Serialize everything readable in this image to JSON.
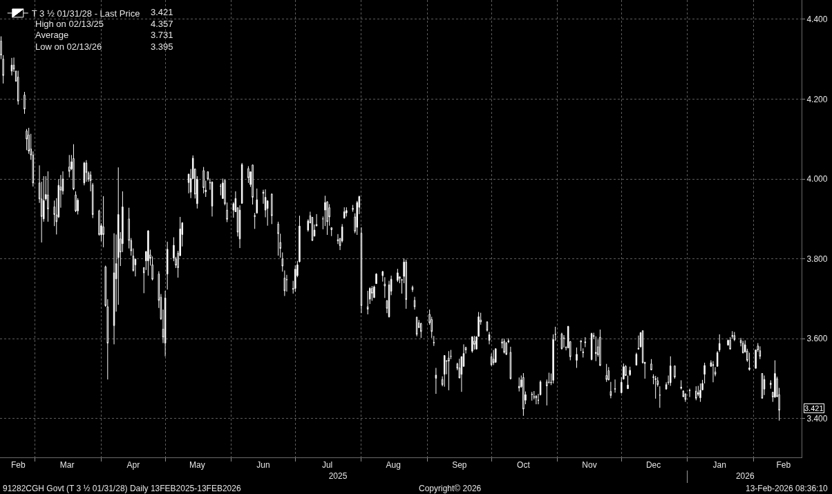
{
  "chart_data": {
    "type": "candlestick",
    "legend": "top left",
    "grid": true,
    "xlim": [
      "2025-02-12T12:00",
      "2026-02-23T12:00"
    ],
    "xticks": [
      {
        "value": "2025-02-21",
        "label": "Feb"
      },
      {
        "value": "2025-03-01",
        "label": null
      },
      {
        "value": "2025-03-16",
        "label": "Mar"
      },
      {
        "value": "2025-04-01",
        "label": null
      },
      {
        "value": "2025-04-16",
        "label": "Apr"
      },
      {
        "value": "2025-05-01",
        "label": null
      },
      {
        "value": "2025-05-16",
        "label": "May"
      },
      {
        "value": "2025-06-01",
        "label": null
      },
      {
        "value": "2025-06-16",
        "label": "Jun"
      },
      {
        "value": "2025-07-01",
        "label": null
      },
      {
        "value": "2025-07-16",
        "label": "Jul"
      },
      {
        "value": "2025-08-01",
        "label": null
      },
      {
        "value": "2025-08-16",
        "label": "Aug"
      },
      {
        "value": "2025-09-01",
        "label": null
      },
      {
        "value": "2025-09-16",
        "label": "Sep"
      },
      {
        "value": "2025-10-01",
        "label": null
      },
      {
        "value": "2025-10-16",
        "label": "Oct"
      },
      {
        "value": "2025-11-01",
        "label": null
      },
      {
        "value": "2025-11-16",
        "label": "Nov"
      },
      {
        "value": "2025-12-01",
        "label": null
      },
      {
        "value": "2025-12-16",
        "label": "Dec"
      },
      {
        "value": "2026-01-01",
        "label": null
      },
      {
        "value": "2026-01-16",
        "label": "Jan"
      },
      {
        "value": "2026-02-01",
        "label": null
      },
      {
        "value": "2026-02-15",
        "label": "Feb"
      }
    ],
    "x2lim": [
      "2025-02-12T12:00",
      "2026-02-23T12:00"
    ],
    "x2ticks": [
      {
        "value": "2025-07-21",
        "label": "2025"
      },
      {
        "value": "2026-01-01",
        "label": null
      },
      {
        "value": "2026-01-28",
        "label": "2026"
      }
    ],
    "ylim": [
      3.303,
      4.448
    ],
    "yticks": [
      {
        "value": 3.4,
        "label": "3.400"
      },
      {
        "value": 3.6,
        "label": "3.600"
      },
      {
        "value": 3.8,
        "label": "3.800"
      },
      {
        "value": 4.0,
        "label": "4.000"
      },
      {
        "value": 4.2,
        "label": "4.200"
      },
      {
        "value": 4.4,
        "label": "4.400"
      }
    ],
    "annotations": [
      "3.421",
      "High on 02/13/25 4.357",
      "Average 3.731",
      "Low on 02/13/26 3.395",
      "91282CGH Govt (T 3 ½ 01/31/28) Daily 13FEB2025-13FEB2026",
      "Copyright© 2026",
      "13-Feb-2026 08:36:10"
    ],
    "x": [
      "2025-02-13",
      "2025-02-14",
      "2025-02-18",
      "2025-02-19",
      "2025-02-20",
      "2025-02-21",
      "2025-02-24",
      "2025-02-25",
      "2025-02-26",
      "2025-02-27",
      "2025-02-28",
      "2025-03-03",
      "2025-03-04",
      "2025-03-05",
      "2025-03-06",
      "2025-03-07",
      "2025-03-10",
      "2025-03-11",
      "2025-03-12",
      "2025-03-13",
      "2025-03-14",
      "2025-03-17",
      "2025-03-18",
      "2025-03-19",
      "2025-03-20",
      "2025-03-21",
      "2025-03-24",
      "2025-03-25",
      "2025-03-26",
      "2025-03-27",
      "2025-03-28",
      "2025-03-31",
      "2025-04-01",
      "2025-04-02",
      "2025-04-03",
      "2025-04-04",
      "2025-04-07",
      "2025-04-08",
      "2025-04-09",
      "2025-04-10",
      "2025-04-11",
      "2025-04-14",
      "2025-04-15",
      "2025-04-16",
      "2025-04-17",
      "2025-04-21",
      "2025-04-22",
      "2025-04-23",
      "2025-04-24",
      "2025-04-25",
      "2025-04-28",
      "2025-04-29",
      "2025-04-30",
      "2025-05-01",
      "2025-05-02",
      "2025-05-05",
      "2025-05-06",
      "2025-05-07",
      "2025-05-08",
      "2025-05-09",
      "2025-05-12",
      "2025-05-13",
      "2025-05-14",
      "2025-05-15",
      "2025-05-16",
      "2025-05-19",
      "2025-05-20",
      "2025-05-21",
      "2025-05-22",
      "2025-05-23",
      "2025-05-27",
      "2025-05-28",
      "2025-05-29",
      "2025-05-30",
      "2025-06-02",
      "2025-06-03",
      "2025-06-04",
      "2025-06-05",
      "2025-06-06",
      "2025-06-09",
      "2025-06-10",
      "2025-06-11",
      "2025-06-12",
      "2025-06-13",
      "2025-06-16",
      "2025-06-17",
      "2025-06-18",
      "2025-06-20",
      "2025-06-23",
      "2025-06-24",
      "2025-06-25",
      "2025-06-26",
      "2025-06-27",
      "2025-06-30",
      "2025-07-01",
      "2025-07-02",
      "2025-07-03",
      "2025-07-07",
      "2025-07-08",
      "2025-07-09",
      "2025-07-10",
      "2025-07-11",
      "2025-07-14",
      "2025-07-15",
      "2025-07-16",
      "2025-07-17",
      "2025-07-18",
      "2025-07-21",
      "2025-07-22",
      "2025-07-23",
      "2025-07-24",
      "2025-07-25",
      "2025-07-28",
      "2025-07-29",
      "2025-07-30",
      "2025-07-31",
      "2025-08-01",
      "2025-08-04",
      "2025-08-05",
      "2025-08-06",
      "2025-08-07",
      "2025-08-08",
      "2025-08-11",
      "2025-08-12",
      "2025-08-13",
      "2025-08-14",
      "2025-08-15",
      "2025-08-18",
      "2025-08-19",
      "2025-08-20",
      "2025-08-21",
      "2025-08-22",
      "2025-08-25",
      "2025-08-26",
      "2025-08-27",
      "2025-08-28",
      "2025-08-29",
      "2025-09-02",
      "2025-09-03",
      "2025-09-04",
      "2025-09-05",
      "2025-09-08",
      "2025-09-09",
      "2025-09-10",
      "2025-09-11",
      "2025-09-12",
      "2025-09-15",
      "2025-09-16",
      "2025-09-17",
      "2025-09-18",
      "2025-09-19",
      "2025-09-22",
      "2025-09-23",
      "2025-09-24",
      "2025-09-25",
      "2025-09-26",
      "2025-09-29",
      "2025-09-30",
      "2025-10-01",
      "2025-10-02",
      "2025-10-03",
      "2025-10-06",
      "2025-10-07",
      "2025-10-08",
      "2025-10-09",
      "2025-10-10",
      "2025-10-14",
      "2025-10-15",
      "2025-10-16",
      "2025-10-17",
      "2025-10-20",
      "2025-10-21",
      "2025-10-22",
      "2025-10-23",
      "2025-10-24",
      "2025-10-27",
      "2025-10-28",
      "2025-10-29",
      "2025-10-30",
      "2025-10-31",
      "2025-11-03",
      "2025-11-04",
      "2025-11-05",
      "2025-11-06",
      "2025-11-07",
      "2025-11-10",
      "2025-11-12",
      "2025-11-13",
      "2025-11-14",
      "2025-11-17",
      "2025-11-18",
      "2025-11-19",
      "2025-11-20",
      "2025-11-21",
      "2025-11-24",
      "2025-11-25",
      "2025-11-26",
      "2025-11-28",
      "2025-12-01",
      "2025-12-02",
      "2025-12-03",
      "2025-12-04",
      "2025-12-05",
      "2025-12-08",
      "2025-12-09",
      "2025-12-10",
      "2025-12-11",
      "2025-12-12",
      "2025-12-15",
      "2025-12-16",
      "2025-12-17",
      "2025-12-18",
      "2025-12-19",
      "2025-12-22",
      "2025-12-23",
      "2025-12-24",
      "2025-12-26",
      "2025-12-29",
      "2025-12-30",
      "2025-12-31",
      "2026-01-02",
      "2026-01-05",
      "2026-01-06",
      "2026-01-07",
      "2026-01-08",
      "2026-01-09",
      "2026-01-12",
      "2026-01-13",
      "2026-01-14",
      "2026-01-15",
      "2026-01-16",
      "2026-01-20",
      "2026-01-21",
      "2026-01-22",
      "2026-01-23",
      "2026-01-26",
      "2026-01-27",
      "2026-01-28",
      "2026-01-29",
      "2026-01-30",
      "2026-02-02",
      "2026-02-03",
      "2026-02-04",
      "2026-02-05",
      "2026-02-06",
      "2026-02-09",
      "2026-02-10",
      "2026-02-11",
      "2026-02-12",
      "2026-02-13"
    ],
    "series": [
      {
        "name": "T 3 ½ 01/31/28 - Last Price",
        "color": "#ffffff",
        "ohlc": [
          [
            4.345,
            4.357,
            4.3,
            4.31
          ],
          [
            4.3,
            4.31,
            4.239,
            4.259
          ],
          [
            4.27,
            4.303,
            4.259,
            4.285
          ],
          [
            4.285,
            4.304,
            4.268,
            4.275
          ],
          [
            4.27,
            4.271,
            4.243,
            4.245
          ],
          [
            4.255,
            4.271,
            4.186,
            4.195
          ],
          [
            4.21,
            4.218,
            4.163,
            4.175
          ],
          [
            4.12,
            4.125,
            4.072,
            4.1
          ],
          [
            4.11,
            4.128,
            4.063,
            4.07
          ],
          [
            4.075,
            4.113,
            4.048,
            4.06
          ],
          [
            4.06,
            4.069,
            3.981,
            3.99
          ],
          [
            3.99,
            4.034,
            3.94,
            3.95
          ],
          [
            3.95,
            3.993,
            3.841,
            3.906
          ],
          [
            3.9,
            4.007,
            3.893,
            3.946
          ],
          [
            3.95,
            4.007,
            3.946,
            3.961
          ],
          [
            3.96,
            4.019,
            3.893,
            3.925
          ],
          [
            3.93,
            3.946,
            3.882,
            3.911
          ],
          [
            3.91,
            3.952,
            3.861,
            3.893
          ],
          [
            3.905,
            3.999,
            3.902,
            3.984
          ],
          [
            3.98,
            4.01,
            3.928,
            3.972
          ],
          [
            3.97,
            4.019,
            3.961,
            4.0
          ],
          [
            4.03,
            4.06,
            4.004,
            4.019
          ],
          [
            4.025,
            4.06,
            4.022,
            4.043
          ],
          [
            4.051,
            4.087,
            3.972,
            3.975
          ],
          [
            3.96,
            3.969,
            3.917,
            3.92
          ],
          [
            3.92,
            3.952,
            3.911,
            3.947
          ],
          [
            3.99,
            4.043,
            3.984,
            4.04
          ],
          [
            4.04,
            4.047,
            3.993,
            4.016
          ],
          [
            4.015,
            4.019,
            3.993,
            4.0
          ],
          [
            4.01,
            4.019,
            3.969,
            3.996
          ],
          [
            3.985,
            3.99,
            3.902,
            3.911
          ],
          [
            3.92,
            3.923,
            3.858,
            3.861
          ],
          [
            3.86,
            3.889,
            3.844,
            3.883
          ],
          [
            3.88,
            3.957,
            3.829,
            3.861
          ],
          [
            3.78,
            3.783,
            3.68,
            3.683
          ],
          [
            3.68,
            3.699,
            3.498,
            3.589
          ],
          [
            3.633,
            3.864,
            3.586,
            3.765
          ],
          [
            3.75,
            3.861,
            3.668,
            3.788
          ],
          [
            3.803,
            4.029,
            3.685,
            3.911
          ],
          [
            3.85,
            3.867,
            3.782,
            3.817
          ],
          [
            3.838,
            3.969,
            3.817,
            3.93
          ],
          [
            3.9,
            3.928,
            3.826,
            3.846
          ],
          [
            3.846,
            3.852,
            3.808,
            3.82
          ],
          [
            3.807,
            3.826,
            3.768,
            3.771
          ],
          [
            3.785,
            3.801,
            3.756,
            3.799
          ],
          [
            3.778,
            3.779,
            3.714,
            3.765
          ],
          [
            3.795,
            3.82,
            3.772,
            3.818
          ],
          [
            3.795,
            3.872,
            3.758,
            3.87
          ],
          [
            3.81,
            3.823,
            3.783,
            3.802
          ],
          [
            3.785,
            3.806,
            3.746,
            3.749
          ],
          [
            3.762,
            3.769,
            3.677,
            3.696
          ],
          [
            3.704,
            3.712,
            3.647,
            3.65
          ],
          [
            3.624,
            3.673,
            3.589,
            3.604
          ],
          [
            3.589,
            3.72,
            3.556,
            3.702
          ],
          [
            3.762,
            3.843,
            3.723,
            3.824
          ],
          [
            3.802,
            3.854,
            3.794,
            3.834
          ],
          [
            3.8,
            3.805,
            3.777,
            3.784
          ],
          [
            3.814,
            3.82,
            3.753,
            3.778
          ],
          [
            3.808,
            3.905,
            3.807,
            3.875
          ],
          [
            3.861,
            3.892,
            3.831,
            3.89
          ],
          [
            3.991,
            4.013,
            3.964,
            4.012
          ],
          [
            3.967,
            4.025,
            3.952,
            4.001
          ],
          [
            4.001,
            4.059,
            4.0,
            4.052
          ],
          [
            4.025,
            4.026,
            3.951,
            3.962
          ],
          [
            3.938,
            4.007,
            3.926,
            3.999
          ],
          [
            4.021,
            4.03,
            3.964,
            3.978
          ],
          [
            3.968,
            3.996,
            3.955,
            3.972
          ],
          [
            4.018,
            4.019,
            3.996,
            4.0
          ],
          [
            3.99,
            4.001,
            3.973,
            3.991
          ],
          [
            3.932,
            3.994,
            3.906,
            3.992
          ],
          [
            3.982,
            3.988,
            3.959,
            3.982
          ],
          [
            3.951,
            4.001,
            3.95,
            3.99
          ],
          [
            3.996,
            3.999,
            3.934,
            3.938
          ],
          [
            3.922,
            3.941,
            3.892,
            3.899
          ],
          [
            3.922,
            3.942,
            3.903,
            3.938
          ],
          [
            3.918,
            3.969,
            3.917,
            3.951
          ],
          [
            3.928,
            3.929,
            3.856,
            3.867
          ],
          [
            3.85,
            3.934,
            3.827,
            3.922
          ],
          [
            3.939,
            4.04,
            3.938,
            4.036
          ],
          [
            4.026,
            4.032,
            3.99,
            4.003
          ],
          [
            3.986,
            4.019,
            3.98,
            4.018
          ],
          [
            4.035,
            4.036,
            3.936,
            3.954
          ],
          [
            3.906,
            3.915,
            3.875,
            3.908
          ],
          [
            3.915,
            3.976,
            3.913,
            3.948
          ],
          [
            3.964,
            3.973,
            3.938,
            3.967
          ],
          [
            3.922,
            3.974,
            3.904,
            3.954
          ],
          [
            3.926,
            3.947,
            3.883,
            3.945
          ],
          [
            3.962,
            3.964,
            3.887,
            3.908
          ],
          [
            3.887,
            3.893,
            3.808,
            3.863
          ],
          [
            3.841,
            3.863,
            3.803,
            3.826
          ],
          [
            3.8,
            3.816,
            3.768,
            3.782
          ],
          [
            3.752,
            3.771,
            3.707,
            3.72
          ],
          [
            3.748,
            3.76,
            3.718,
            3.748
          ],
          [
            3.726,
            3.745,
            3.713,
            3.724
          ],
          [
            3.726,
            3.784,
            3.718,
            3.774
          ],
          [
            3.758,
            3.795,
            3.754,
            3.785
          ],
          [
            3.793,
            3.908,
            3.791,
            3.882
          ],
          [
            3.872,
            3.899,
            3.868,
            3.895
          ],
          [
            3.908,
            3.918,
            3.889,
            3.89
          ],
          [
            3.904,
            3.905,
            3.845,
            3.846
          ],
          [
            3.857,
            3.886,
            3.856,
            3.872
          ],
          [
            3.883,
            3.912,
            3.881,
            3.886
          ],
          [
            3.9,
            3.906,
            3.874,
            3.9
          ],
          [
            3.922,
            3.958,
            3.882,
            3.941
          ],
          [
            3.943,
            3.944,
            3.86,
            3.893
          ],
          [
            3.928,
            3.937,
            3.883,
            3.905
          ],
          [
            3.878,
            3.879,
            3.857,
            3.873
          ],
          [
            3.848,
            3.862,
            3.837,
            3.845
          ],
          [
            3.851,
            3.852,
            3.822,
            3.833
          ],
          [
            3.845,
            3.887,
            3.841,
            3.88
          ],
          [
            3.902,
            3.929,
            3.901,
            3.918
          ],
          [
            3.915,
            3.929,
            3.906,
            3.921
          ],
          [
            3.924,
            3.935,
            3.918,
            3.926
          ],
          [
            3.905,
            3.914,
            3.864,
            3.869
          ],
          [
            3.879,
            3.945,
            3.86,
            3.941
          ],
          [
            3.929,
            3.958,
            3.912,
            3.956
          ],
          [
            3.864,
            3.879,
            3.664,
            3.683
          ],
          [
            3.68,
            3.72,
            3.661,
            3.674
          ],
          [
            3.699,
            3.729,
            3.687,
            3.726
          ],
          [
            3.726,
            3.732,
            3.695,
            3.714
          ],
          [
            3.703,
            3.733,
            3.702,
            3.73
          ],
          [
            3.738,
            3.764,
            3.737,
            3.762
          ],
          [
            3.758,
            3.77,
            3.743,
            3.768
          ],
          [
            3.737,
            3.754,
            3.702,
            3.732
          ],
          [
            3.695,
            3.697,
            3.664,
            3.676
          ],
          [
            3.655,
            3.745,
            3.653,
            3.735
          ],
          [
            3.719,
            3.758,
            3.709,
            3.749
          ],
          [
            3.746,
            3.775,
            3.742,
            3.765
          ],
          [
            3.755,
            3.756,
            3.739,
            3.751
          ],
          [
            3.748,
            3.75,
            3.713,
            3.747
          ],
          [
            3.756,
            3.801,
            3.739,
            3.792
          ],
          [
            3.792,
            3.798,
            3.675,
            3.698
          ],
          [
            3.729,
            3.733,
            3.717,
            3.723
          ],
          [
            3.696,
            3.705,
            3.673,
            3.68
          ],
          [
            3.654,
            3.655,
            3.606,
            3.611
          ],
          [
            3.64,
            3.647,
            3.627,
            3.628
          ],
          [
            3.638,
            3.64,
            3.602,
            3.618
          ],
          [
            3.661,
            3.673,
            3.635,
            3.64
          ],
          [
            3.648,
            3.655,
            3.602,
            3.618
          ],
          [
            3.591,
            3.607,
            3.582,
            3.59
          ],
          [
            3.501,
            3.527,
            3.462,
            3.509
          ],
          [
            3.498,
            3.506,
            3.481,
            3.485
          ],
          [
            3.511,
            3.559,
            3.48,
            3.558
          ],
          [
            3.545,
            3.546,
            3.511,
            3.544
          ],
          [
            3.552,
            3.569,
            3.471,
            3.544
          ],
          [
            3.556,
            3.572,
            3.549,
            3.556
          ],
          [
            3.537,
            3.54,
            3.521,
            3.526
          ],
          [
            3.527,
            3.55,
            3.501,
            3.502
          ],
          [
            3.511,
            3.556,
            3.467,
            3.555
          ],
          [
            3.531,
            3.586,
            3.53,
            3.563
          ],
          [
            3.578,
            3.58,
            3.563,
            3.572
          ],
          [
            3.569,
            3.606,
            3.565,
            3.605
          ],
          [
            3.594,
            3.607,
            3.573,
            3.586
          ],
          [
            3.574,
            3.606,
            3.573,
            3.605
          ],
          [
            3.606,
            3.667,
            3.605,
            3.655
          ],
          [
            3.647,
            3.665,
            3.635,
            3.642
          ],
          [
            3.642,
            3.644,
            3.618,
            3.621
          ],
          [
            3.596,
            3.617,
            3.586,
            3.61
          ],
          [
            3.555,
            3.563,
            3.532,
            3.535
          ],
          [
            3.549,
            3.572,
            3.534,
            3.54
          ],
          [
            3.541,
            3.576,
            3.54,
            3.575
          ],
          [
            3.592,
            3.6,
            3.576,
            3.589
          ],
          [
            3.594,
            3.6,
            3.563,
            3.566
          ],
          [
            3.589,
            3.592,
            3.559,
            3.561
          ],
          [
            3.592,
            3.601,
            3.589,
            3.595
          ],
          [
            3.566,
            3.58,
            3.498,
            3.5
          ],
          [
            3.477,
            3.503,
            3.468,
            3.481
          ],
          [
            3.48,
            3.508,
            3.477,
            3.497
          ],
          [
            3.503,
            3.514,
            3.407,
            3.424
          ],
          [
            3.446,
            3.468,
            3.436,
            3.46
          ],
          [
            3.46,
            3.467,
            3.445,
            3.461
          ],
          [
            3.455,
            3.469,
            3.448,
            3.454
          ],
          [
            3.456,
            3.459,
            3.436,
            3.452
          ],
          [
            3.446,
            3.462,
            3.436,
            3.446
          ],
          [
            3.46,
            3.496,
            3.458,
            3.492
          ],
          [
            3.492,
            3.498,
            3.433,
            3.482
          ],
          [
            3.491,
            3.515,
            3.488,
            3.491
          ],
          [
            3.491,
            3.513,
            3.484,
            3.49
          ],
          [
            3.496,
            3.611,
            3.488,
            3.598
          ],
          [
            3.611,
            3.63,
            3.595,
            3.611
          ],
          [
            3.612,
            3.615,
            3.573,
            3.575
          ],
          [
            3.602,
            3.609,
            3.578,
            3.601
          ],
          [
            3.578,
            3.581,
            3.571,
            3.578
          ],
          [
            3.577,
            3.632,
            3.576,
            3.631
          ],
          [
            3.593,
            3.594,
            3.546,
            3.555
          ],
          [
            3.546,
            3.578,
            3.527,
            3.561
          ],
          [
            3.595,
            3.596,
            3.569,
            3.592
          ],
          [
            3.565,
            3.576,
            3.553,
            3.567
          ],
          [
            3.59,
            3.604,
            3.579,
            3.592
          ],
          [
            3.548,
            3.615,
            3.546,
            3.613
          ],
          [
            3.608,
            3.615,
            3.6,
            3.606
          ],
          [
            3.563,
            3.606,
            3.544,
            3.566
          ],
          [
            3.58,
            3.598,
            3.555,
            3.56
          ],
          [
            3.604,
            3.623,
            3.532,
            3.533
          ],
          [
            3.508,
            3.537,
            3.492,
            3.498
          ],
          [
            3.52,
            3.529,
            3.496,
            3.497
          ],
          [
            3.468,
            3.492,
            3.451,
            3.458
          ],
          [
            3.475,
            3.498,
            3.465,
            3.474
          ],
          [
            3.465,
            3.504,
            3.463,
            3.491
          ],
          [
            3.499,
            3.538,
            3.498,
            3.53
          ],
          [
            3.531,
            3.534,
            3.507,
            3.508
          ],
          [
            3.475,
            3.508,
            3.474,
            3.484
          ],
          [
            3.51,
            3.53,
            3.507,
            3.521
          ],
          [
            3.534,
            3.565,
            3.533,
            3.561
          ],
          [
            3.574,
            3.608,
            3.573,
            3.576
          ],
          [
            3.58,
            3.617,
            3.578,
            3.615
          ],
          [
            3.62,
            3.621,
            3.538,
            3.54
          ],
          [
            3.541,
            3.542,
            3.5,
            3.538
          ],
          [
            3.537,
            3.549,
            3.521,
            3.522
          ],
          [
            3.505,
            3.511,
            3.486,
            3.503
          ],
          [
            3.498,
            3.507,
            3.45,
            3.5
          ],
          [
            3.495,
            3.504,
            3.48,
            3.485
          ],
          [
            3.459,
            3.481,
            3.427,
            3.459
          ],
          [
            3.474,
            3.491,
            3.473,
            3.485
          ],
          [
            3.491,
            3.508,
            3.485,
            3.491
          ],
          [
            3.49,
            3.556,
            3.482,
            3.532
          ],
          [
            3.532,
            3.533,
            3.5,
            3.504
          ],
          [
            3.476,
            3.496,
            3.473,
            3.479
          ],
          [
            3.469,
            3.471,
            3.454,
            3.455
          ],
          [
            3.462,
            3.463,
            3.442,
            3.448
          ],
          [
            3.471,
            3.475,
            3.454,
            3.47
          ],
          [
            3.469,
            3.481,
            3.446,
            3.451
          ],
          [
            3.461,
            3.482,
            3.456,
            3.465
          ],
          [
            3.452,
            3.488,
            3.442,
            3.471
          ],
          [
            3.472,
            3.497,
            3.471,
            3.488
          ],
          [
            3.511,
            3.54,
            3.488,
            3.533
          ],
          [
            3.531,
            3.546,
            3.53,
            3.54
          ],
          [
            3.533,
            3.544,
            3.491,
            3.535
          ],
          [
            3.517,
            3.529,
            3.506,
            3.511
          ],
          [
            3.531,
            3.569,
            3.53,
            3.565
          ],
          [
            3.572,
            3.611,
            3.567,
            3.588
          ],
          [
            3.584,
            3.598,
            3.583,
            3.596
          ],
          [
            3.596,
            3.604,
            3.573,
            3.574
          ],
          [
            3.606,
            3.619,
            3.6,
            3.608
          ],
          [
            3.608,
            3.617,
            3.594,
            3.598
          ],
          [
            3.596,
            3.602,
            3.581,
            3.59
          ],
          [
            3.589,
            3.595,
            3.563,
            3.565
          ],
          [
            3.567,
            3.596,
            3.565,
            3.585
          ],
          [
            3.569,
            3.575,
            3.542,
            3.546
          ],
          [
            3.523,
            3.565,
            3.52,
            3.527
          ],
          [
            3.526,
            3.573,
            3.525,
            3.572
          ],
          [
            3.582,
            3.589,
            3.567,
            3.572
          ],
          [
            3.57,
            3.581,
            3.549,
            3.556
          ],
          [
            3.513,
            3.514,
            3.45,
            3.451
          ],
          [
            3.474,
            3.508,
            3.459,
            3.498
          ],
          [
            3.489,
            3.496,
            3.475,
            3.485
          ],
          [
            3.466,
            3.467,
            3.442,
            3.454
          ],
          [
            3.454,
            3.546,
            3.452,
            3.513
          ],
          [
            3.5,
            3.505,
            3.454,
            3.455
          ],
          [
            3.46,
            3.477,
            3.395,
            3.421
          ]
        ]
      }
    ]
  }
}
